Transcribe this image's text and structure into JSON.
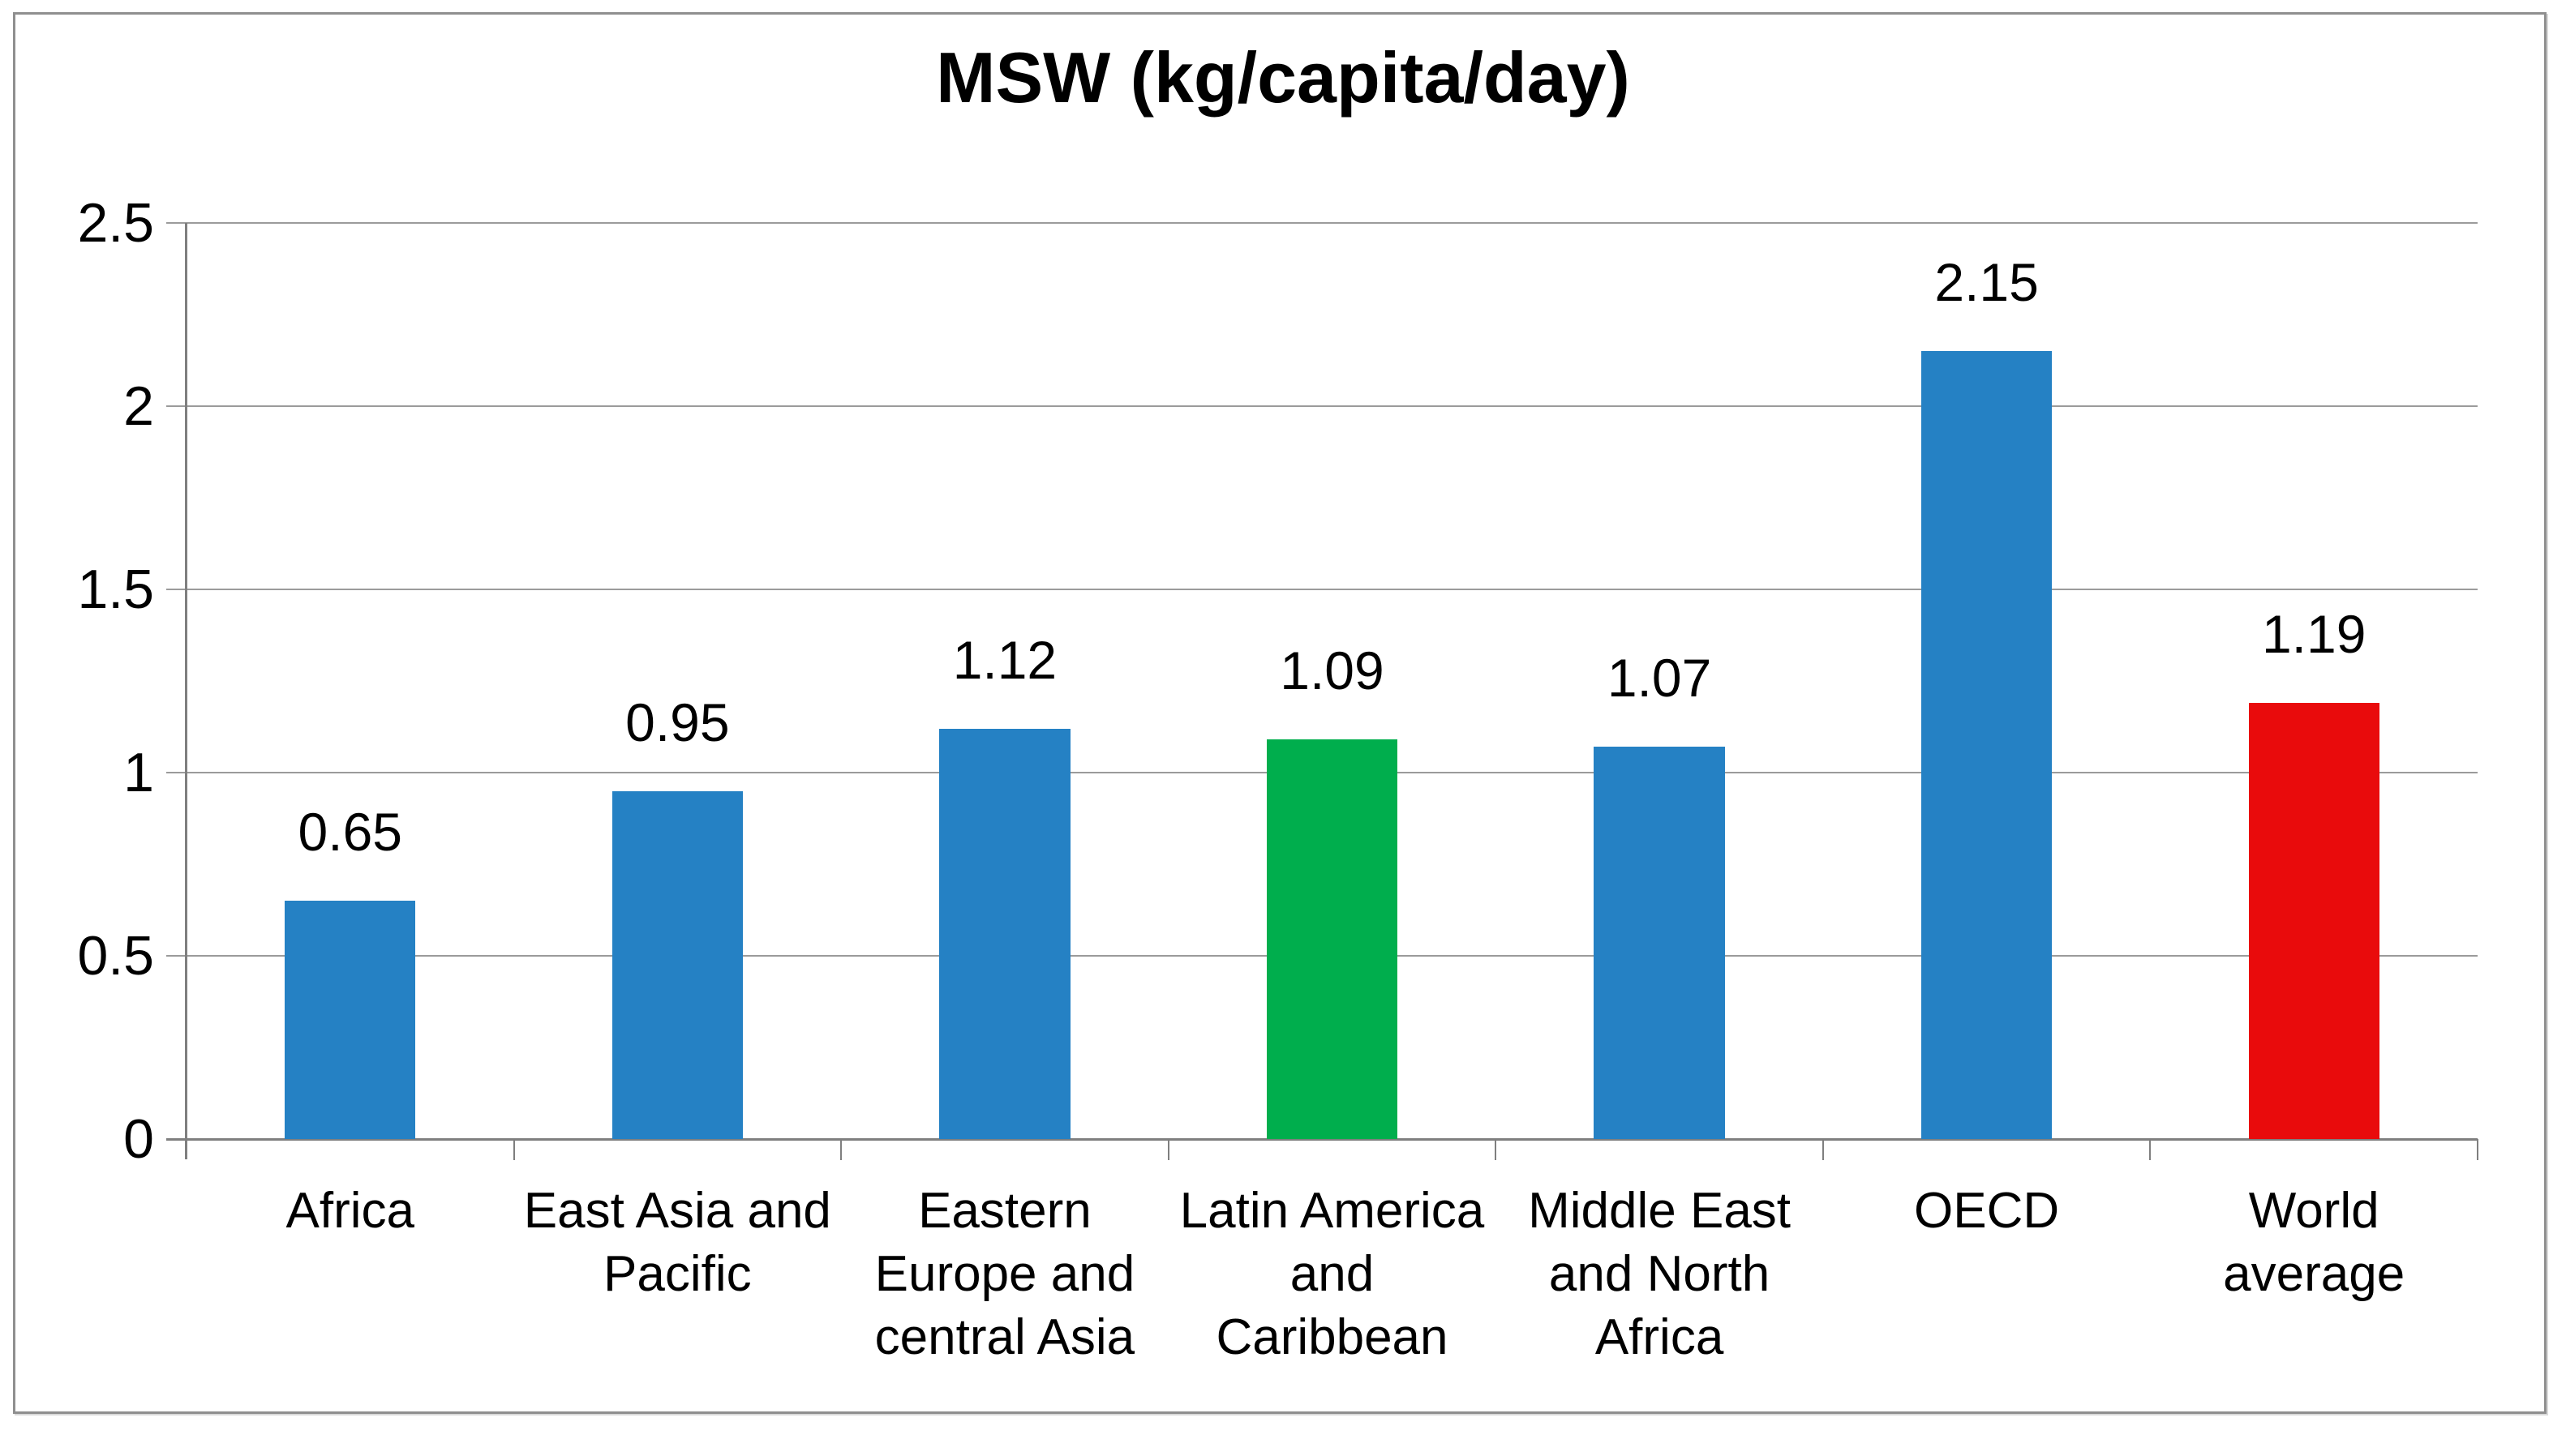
{
  "chart_data": {
    "type": "bar",
    "title": "MSW (kg/capita/day)",
    "categories": [
      "Africa",
      "East Asia and\nPacific",
      "Eastern\nEurope and\ncentral Asia",
      "Latin America\nand Caribbean",
      "Middle East\nand North\nAfrica",
      "OECD",
      "World\naverage"
    ],
    "values": [
      0.65,
      0.95,
      1.12,
      1.09,
      1.07,
      2.15,
      1.19
    ],
    "value_labels": [
      "0.65",
      "0.95",
      "1.12",
      "1.09",
      "1.07",
      "2.15",
      "1.19"
    ],
    "bar_colors": [
      "#2581C4",
      "#2581C4",
      "#2581C4",
      "#00AE4D",
      "#2581C4",
      "#2581C4",
      "#E90B0C"
    ],
    "xlabel": "",
    "ylabel": "",
    "ylim": [
      0,
      2.5
    ],
    "ytick_step": 0.5,
    "ytick_labels": [
      "0",
      "0.5",
      "1",
      "1.5",
      "2",
      "2.5"
    ],
    "grid": true,
    "legend_position": "none",
    "gridline_color": "#9b9b9b",
    "axis_color": "#7f7f7f",
    "text_color": "#000000",
    "background_color": "#ffffff",
    "frame_border_color": "#8f8f8f"
  }
}
